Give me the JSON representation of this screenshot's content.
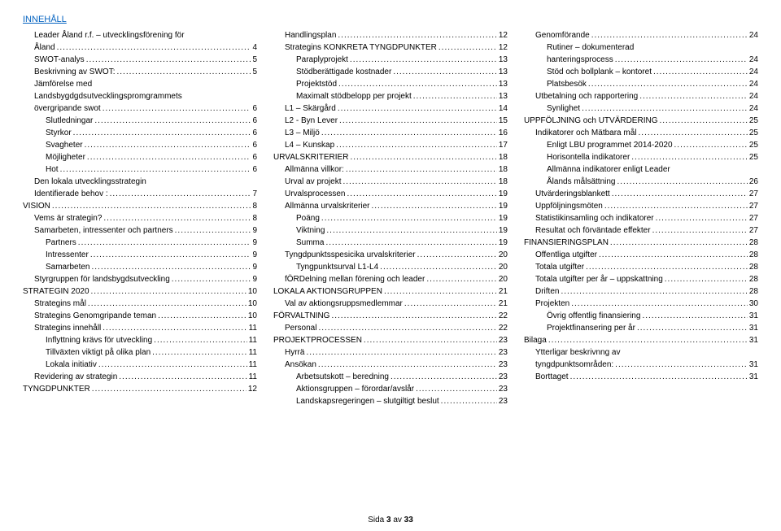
{
  "header": "INNEHÅLL",
  "footer": {
    "prefix": "Sida ",
    "page": "3",
    "sep": " av ",
    "total": "33"
  },
  "columns": [
    [
      {
        "indent": 1,
        "label": "Leader Åland r.f. – utvecklingsförening för",
        "wrap": true
      },
      {
        "indent": 1,
        "label": "Åland",
        "page": "4"
      },
      {
        "indent": 1,
        "label": "SWOT-analys",
        "page": "5"
      },
      {
        "indent": 1,
        "label": "Beskrivning av SWOT:",
        "page": "5"
      },
      {
        "indent": 1,
        "label": "Jämförelse med",
        "wrap": true
      },
      {
        "indent": 1,
        "label": "Landsbygdgdsutvecklingspromgrammets",
        "wrap": true
      },
      {
        "indent": 1,
        "label": "övergripande swot",
        "page": "6"
      },
      {
        "indent": 2,
        "label": "Slutledningar",
        "page": "6"
      },
      {
        "indent": 2,
        "label": "Styrkor",
        "page": "6"
      },
      {
        "indent": 2,
        "label": "Svagheter",
        "page": "6"
      },
      {
        "indent": 2,
        "label": "Möjligheter",
        "page": "6"
      },
      {
        "indent": 2,
        "label": "Hot",
        "page": "6"
      },
      {
        "indent": 1,
        "label": "Den lokala utvecklingsstrategin",
        "wrap": true
      },
      {
        "indent": 1,
        "label": "Identifierade behov :",
        "page": "7"
      },
      {
        "indent": 0,
        "label": "VISION",
        "page": "8"
      },
      {
        "indent": 1,
        "label": "Vems är strategin?",
        "page": "8"
      },
      {
        "indent": 1,
        "label": "Samarbeten, intressenter och partners",
        "page": "9"
      },
      {
        "indent": 2,
        "label": "Partners",
        "page": "9"
      },
      {
        "indent": 2,
        "label": "Intressenter",
        "page": "9"
      },
      {
        "indent": 2,
        "label": "Samarbeten",
        "page": "9"
      },
      {
        "indent": 1,
        "label": "Styrgruppen för landsbygdsutveckling",
        "page": "9"
      },
      {
        "indent": 0,
        "label": "STRATEGIN 2020",
        "page": "10"
      },
      {
        "indent": 1,
        "label": "Strategins mål",
        "page": "10"
      },
      {
        "indent": 1,
        "label": "Strategins Genomgripande teman",
        "page": "10"
      },
      {
        "indent": 1,
        "label": "Strategins innehåll",
        "page": "11"
      },
      {
        "indent": 2,
        "label": "Inflyttning krävs för utveckling",
        "page": "11"
      },
      {
        "indent": 2,
        "label": "Tillväxten viktigt på olika plan",
        "page": "11"
      },
      {
        "indent": 2,
        "label": "Lokala initiativ",
        "page": "11"
      },
      {
        "indent": 1,
        "label": "Revidering av strategin",
        "page": "11"
      },
      {
        "indent": 0,
        "label": "TYNGDPUNKTER",
        "page": "12"
      }
    ],
    [
      {
        "indent": 1,
        "label": "Handlingsplan",
        "page": "12"
      },
      {
        "indent": 1,
        "label": "Strategins KONKRETA TYNGDPUNKTER",
        "page": "12"
      },
      {
        "indent": 2,
        "label": "Paraplyprojekt",
        "page": "13"
      },
      {
        "indent": 2,
        "label": "Stödberättigade kostnader",
        "page": "13"
      },
      {
        "indent": 2,
        "label": "Projektstöd",
        "page": "13"
      },
      {
        "indent": 2,
        "label": "Maximalt stödbelopp per projekt",
        "page": "13"
      },
      {
        "indent": 1,
        "label": "L1 – Skärgård",
        "page": "14"
      },
      {
        "indent": 1,
        "label": "L2 - Byn Lever",
        "page": "15"
      },
      {
        "indent": 1,
        "label": "L3 – Miljö",
        "page": "16"
      },
      {
        "indent": 1,
        "label": "L4 – Kunskap",
        "page": "17"
      },
      {
        "indent": 0,
        "label": "URVALSKRITERIER",
        "page": "18"
      },
      {
        "indent": 1,
        "label": "Allmänna villkor:",
        "page": "18"
      },
      {
        "indent": 1,
        "label": "Urval av projekt",
        "page": "18"
      },
      {
        "indent": 1,
        "label": "Urvalsprocessen",
        "page": "19"
      },
      {
        "indent": 1,
        "label": "Allmänna urvalskriterier",
        "page": "19"
      },
      {
        "indent": 2,
        "label": "Poäng",
        "page": "19"
      },
      {
        "indent": 2,
        "label": "Viktning",
        "page": "19"
      },
      {
        "indent": 2,
        "label": "Summa",
        "page": "19"
      },
      {
        "indent": 1,
        "label": "Tyngdpunktsspesicika urvalskriterier",
        "page": "20"
      },
      {
        "indent": 2,
        "label": "Tyngpunktsurval L1-L4",
        "page": "20"
      },
      {
        "indent": 1,
        "label": "fÖRDelning mellan förening och leader",
        "page": "20"
      },
      {
        "indent": 0,
        "label": "LOKALA AKTIONSGRUPPEN",
        "page": "21"
      },
      {
        "indent": 1,
        "label": "Val av aktiongsruppsmedlemmar",
        "page": "21"
      },
      {
        "indent": 0,
        "label": "FÖRVALTNING",
        "page": "22"
      },
      {
        "indent": 1,
        "label": "Personal",
        "page": "22"
      },
      {
        "indent": 0,
        "label": "PROJEKTPROCESSEN",
        "page": "23"
      },
      {
        "indent": 1,
        "label": "Hyrrä",
        "page": "23"
      },
      {
        "indent": 1,
        "label": "Ansökan",
        "page": "23"
      },
      {
        "indent": 2,
        "label": "Arbetsutskott – beredning",
        "page": "23"
      },
      {
        "indent": 2,
        "label": "Aktionsgruppen – förordar/avslår",
        "page": "23"
      },
      {
        "indent": 2,
        "label": "Landskapsregeringen – slutgiltigt beslut",
        "page": "23"
      }
    ],
    [
      {
        "indent": 1,
        "label": "Genomförande",
        "page": "24"
      },
      {
        "indent": 2,
        "label": "Rutiner – dokumenterad",
        "wrap": true
      },
      {
        "indent": 2,
        "label": "hanteringsprocess",
        "page": "24"
      },
      {
        "indent": 2,
        "label": "Stöd och bollplank – kontoret",
        "page": "24"
      },
      {
        "indent": 2,
        "label": "Platsbesök",
        "page": "24"
      },
      {
        "indent": 1,
        "label": "Utbetalning och rapportering",
        "page": "24"
      },
      {
        "indent": 2,
        "label": "Synlighet",
        "page": "24"
      },
      {
        "indent": 0,
        "label": "UPPFÖLJNING och UTVÄRDERING",
        "page": "25"
      },
      {
        "indent": 1,
        "label": "Indikatorer och Mätbara mål",
        "page": "25"
      },
      {
        "indent": 2,
        "label": "Enligt LBU programmet 2014-2020",
        "page": "25"
      },
      {
        "indent": 2,
        "label": "Horisontella indikatorer",
        "page": "25"
      },
      {
        "indent": 2,
        "label": "Allmänna indikatorer enligt Leader",
        "wrap": true
      },
      {
        "indent": 2,
        "label": "Ålands målsättning",
        "page": "26"
      },
      {
        "indent": 1,
        "label": "Utvärderingsblankett",
        "page": "27"
      },
      {
        "indent": 1,
        "label": "Uppföljningsmöten",
        "page": "27"
      },
      {
        "indent": 1,
        "label": "Statistikinsamling och indikatorer",
        "page": "27"
      },
      {
        "indent": 1,
        "label": "Resultat och förväntade effekter",
        "page": "27"
      },
      {
        "indent": 0,
        "label": "FINANSIERINGSPLAN",
        "page": "28"
      },
      {
        "indent": 1,
        "label": "Offentliga utgifter",
        "page": "28"
      },
      {
        "indent": 1,
        "label": "Totala utgifter",
        "page": "28"
      },
      {
        "indent": 1,
        "label": "Totala utgifter per år – uppskattning",
        "page": "28"
      },
      {
        "indent": 1,
        "label": "Driften",
        "page": "28"
      },
      {
        "indent": 1,
        "label": "Projekten",
        "page": "30"
      },
      {
        "indent": 2,
        "label": "Övrig offentlig finansiering",
        "page": "31"
      },
      {
        "indent": 2,
        "label": "Projektfinansering per år",
        "page": "31"
      },
      {
        "indent": 0,
        "label": "Bilaga",
        "page": "31"
      },
      {
        "indent": 1,
        "label": "Ytterligar beskrivnng av",
        "wrap": true
      },
      {
        "indent": 1,
        "label": "tyngdpunktsområden:",
        "page": "31"
      },
      {
        "indent": 1,
        "label": "Borttaget",
        "page": "31"
      }
    ]
  ]
}
